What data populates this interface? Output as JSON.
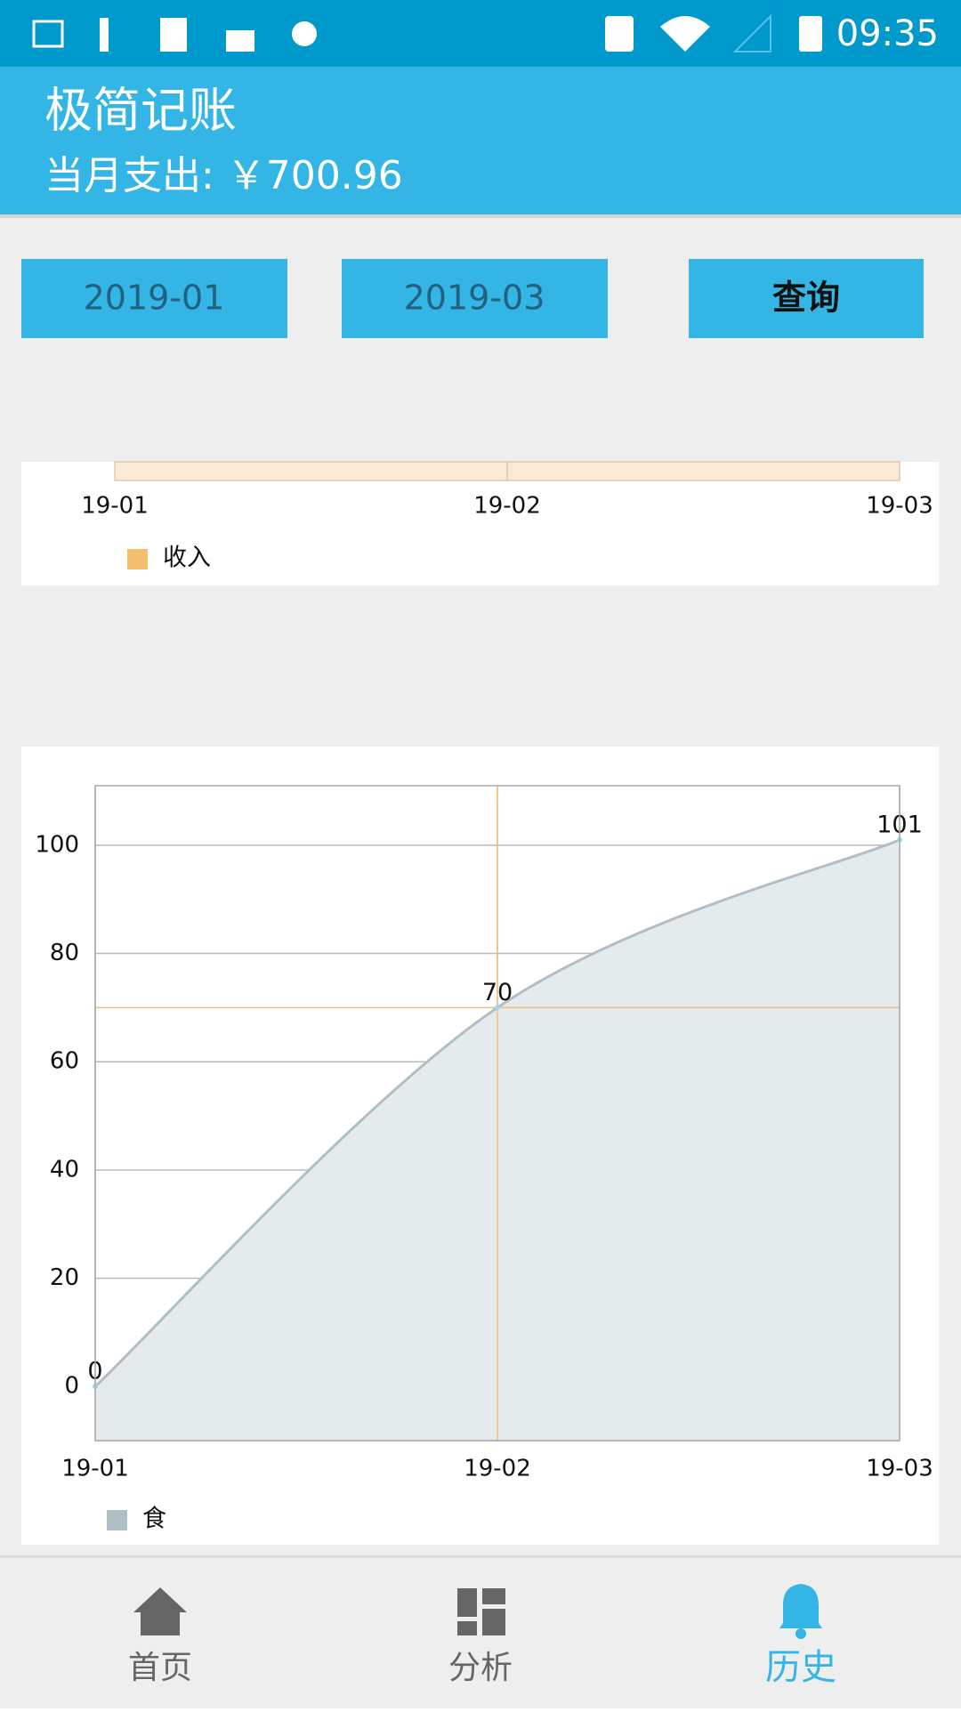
{
  "status_bar": {
    "time": "09:35"
  },
  "app_bar": {
    "title": "极简记账",
    "subtitle": "当月支出: ￥700.96"
  },
  "controls": {
    "start": "2019-01",
    "end": "2019-03",
    "query": "查询"
  },
  "chart_data": [
    {
      "type": "line",
      "area": true,
      "categories": [
        "19-01",
        "19-02",
        "19-03"
      ],
      "series": [
        {
          "name": "收入",
          "color": "#f5c06e"
        }
      ]
    },
    {
      "type": "line",
      "area": true,
      "categories": [
        "19-01",
        "19-02",
        "19-03"
      ],
      "series": [
        {
          "name": "食",
          "color": "#b0bec5",
          "values": [
            0,
            70,
            101
          ]
        }
      ],
      "ylim": [
        -10,
        111
      ],
      "yticks": [
        0,
        20,
        40,
        60,
        80,
        100
      ],
      "grid": true,
      "highlight": {
        "index": 1,
        "color": "#f5c06e"
      }
    }
  ],
  "nav": [
    {
      "label": "首页"
    },
    {
      "label": "分析"
    },
    {
      "label": "历史",
      "active": true
    }
  ]
}
